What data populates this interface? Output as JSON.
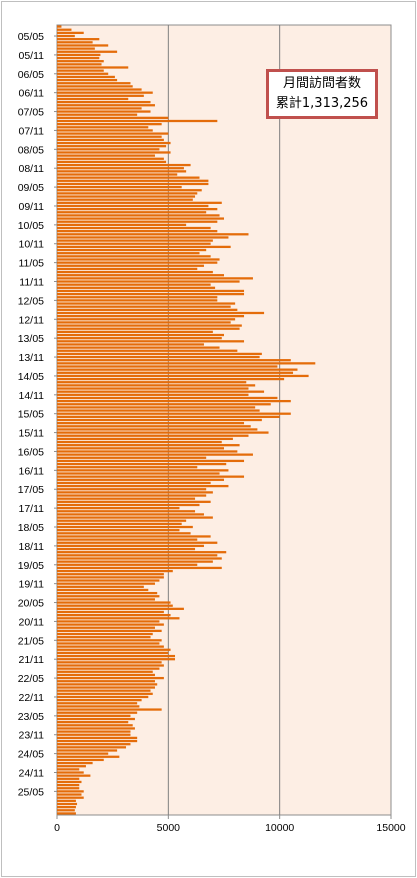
{
  "chart_data": {
    "type": "bar",
    "orientation": "horizontal",
    "title": "",
    "xlabel": "",
    "ylabel": "",
    "xlim": [
      0,
      15000
    ],
    "x_ticks": [
      "0",
      "5000",
      "10000",
      "15000"
    ],
    "grid": "vertical major gridlines",
    "legend_box": {
      "line1": "月間訪問者数",
      "line2": "累計1,313,256"
    },
    "y_tick_labels": [
      "05/05",
      "05/11",
      "06/05",
      "06/11",
      "07/05",
      "07/11",
      "08/05",
      "08/11",
      "09/05",
      "09/11",
      "10/05",
      "10/11",
      "11/05",
      "11/11",
      "12/05",
      "12/11",
      "13/05",
      "13/11",
      "14/05",
      "14/11",
      "15/05",
      "15/11",
      "16/05",
      "16/11",
      "17/05",
      "17/11",
      "18/05",
      "18/11",
      "19/05",
      "19/11",
      "20/05",
      "20/11",
      "21/05",
      "21/11",
      "22/05",
      "22/11",
      "23/05",
      "23/11",
      "24/05",
      "24/11",
      "25/05"
    ],
    "series": [
      {
        "values": [
          200,
          650,
          1200,
          800,
          1900,
          1600,
          2300,
          1700,
          2700,
          1950,
          1900,
          2100,
          2000,
          3200,
          2100,
          2300,
          2600,
          2700,
          3300,
          3400,
          3800,
          4300,
          3900,
          3200,
          4200,
          4400,
          3800,
          4200,
          3600,
          5000,
          7200,
          4700,
          4100,
          4300,
          5000,
          4700,
          4800,
          5100,
          4900,
          4600,
          5100,
          4400,
          4800,
          4900,
          6000,
          5700,
          5800,
          5400,
          6400,
          6800,
          6800,
          5600,
          6500,
          6300,
          6200,
          6100,
          7400,
          6800,
          7200,
          6700,
          7300,
          7500,
          7200,
          5800,
          6900,
          7200,
          8600,
          7700,
          7000,
          6900,
          7800,
          6700,
          6400,
          6900,
          7300,
          7200,
          6600,
          6300,
          7000,
          7500,
          8800,
          8200,
          6900,
          7100,
          8400,
          8400,
          7200,
          7200,
          8000,
          7800,
          8100,
          9300,
          8400,
          8000,
          7800,
          8300,
          8200,
          7000,
          7500,
          7400,
          8400,
          6600,
          7300,
          8100,
          9200,
          9100,
          10500,
          11600,
          9900,
          10800,
          10600,
          11300,
          10200,
          8500,
          8900,
          8600,
          9300,
          8600,
          9900,
          10500,
          9600,
          8900,
          9100,
          10500,
          10000,
          9200,
          8400,
          8700,
          9000,
          9500,
          8600,
          7900,
          7400,
          8200,
          7500,
          8100,
          8800,
          6700,
          8400,
          7600,
          6300,
          7700,
          7300,
          8400,
          7500,
          6900,
          7700,
          6700,
          7000,
          6700,
          6200,
          6900,
          6400,
          5500,
          6200,
          6600,
          7000,
          5800,
          5600,
          6100,
          5500,
          6000,
          6900,
          6300,
          7200,
          6600,
          6200,
          7600,
          7200,
          7400,
          7000,
          6300,
          7400,
          5200,
          4800,
          4800,
          4600,
          4400,
          3900,
          4100,
          4500,
          4600,
          4400,
          5100,
          5200,
          5700,
          4800,
          5100,
          5500,
          4600,
          4800,
          4400,
          4700,
          4300,
          4200,
          4700,
          4600,
          4800,
          5100,
          5000,
          5300,
          5300,
          4700,
          4800,
          4600,
          4300,
          4400,
          4800,
          4400,
          4500,
          4400,
          4200,
          4300,
          4100,
          3800,
          3600,
          3700,
          4700,
          3600,
          3300,
          3500,
          3200,
          3400,
          3500,
          3300,
          3300,
          3600,
          3600,
          3300,
          3100,
          2700,
          2300,
          2800,
          2100,
          1600,
          1300,
          1000,
          1200,
          1500,
          1000,
          1100,
          1000,
          1000,
          1200,
          1100,
          1200,
          850,
          900,
          850,
          800,
          850
        ]
      }
    ]
  },
  "colors": {
    "bar": "#e46c0a",
    "plot_bg": "#fdeee4",
    "grid": "#7f7f7f",
    "legend_border": "#c0504d"
  }
}
